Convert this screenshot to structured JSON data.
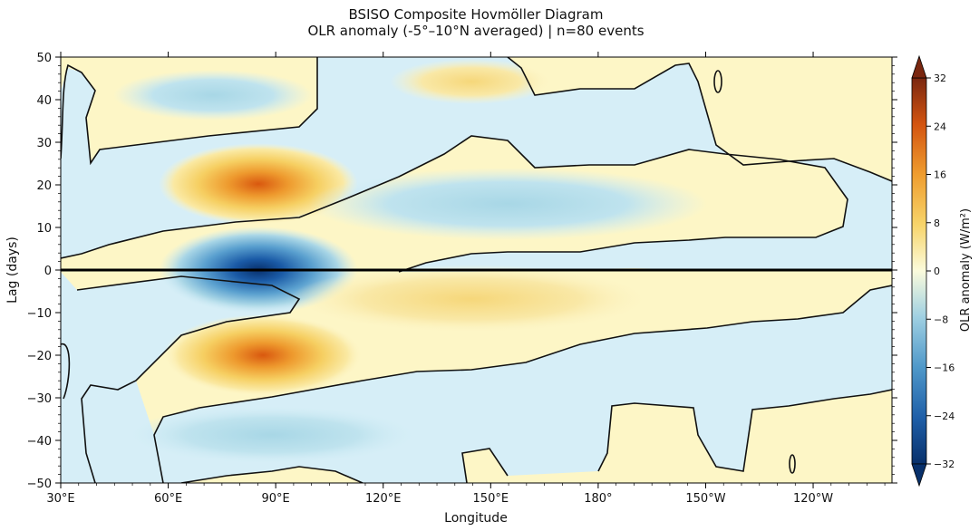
{
  "chart_data": {
    "type": "heatmap",
    "title": "BSISO Composite Hovmöller Diagram",
    "subtitle": "OLR anomaly (-5°–10°N averaged) | n=80 events",
    "xlabel": "Longitude",
    "ylabel": "Lag (days)",
    "colorbar_label": "OLR anomaly (W/m²)",
    "x_range_deg_east": [
      30,
      262
    ],
    "y_range_days": [
      -50,
      50
    ],
    "x_ticks": [
      {
        "lon": 30,
        "label": "30°E"
      },
      {
        "lon": 60,
        "label": "60°E"
      },
      {
        "lon": 90,
        "label": "90°E"
      },
      {
        "lon": 120,
        "label": "120°E"
      },
      {
        "lon": 150,
        "label": "150°E"
      },
      {
        "lon": 180,
        "label": "180°"
      },
      {
        "lon": 210,
        "label": "150°W"
      },
      {
        "lon": 240,
        "label": "120°W"
      }
    ],
    "y_ticks": [
      50,
      40,
      30,
      20,
      10,
      0,
      -10,
      -20,
      -30,
      -40,
      -50
    ],
    "colorbar_ticks": [
      32,
      24,
      16,
      8,
      0,
      -8,
      -16,
      -24,
      -32
    ],
    "color_range": [
      -32,
      32
    ],
    "reference_line_lag": 0,
    "anomaly_centers": [
      {
        "lon": 85,
        "lag": 0,
        "value": -32,
        "desc": "strongest negative (convective) anomaly"
      },
      {
        "lon": 85,
        "lag": 20,
        "value": 24,
        "desc": "positive anomaly leading"
      },
      {
        "lon": 85,
        "lag": -20,
        "value": 24,
        "desc": "positive anomaly lagging"
      },
      {
        "lon": 150,
        "lag": -7,
        "value": 10,
        "desc": "eastward-extending positive band"
      },
      {
        "lon": 135,
        "lag": 15,
        "value": -10,
        "desc": "eastward-extending negative band"
      },
      {
        "lon": 95,
        "lag": -40,
        "value": -8,
        "desc": "negative anomaly"
      },
      {
        "lon": 75,
        "lag": 40,
        "value": -6,
        "desc": "negative anomaly"
      }
    ]
  }
}
